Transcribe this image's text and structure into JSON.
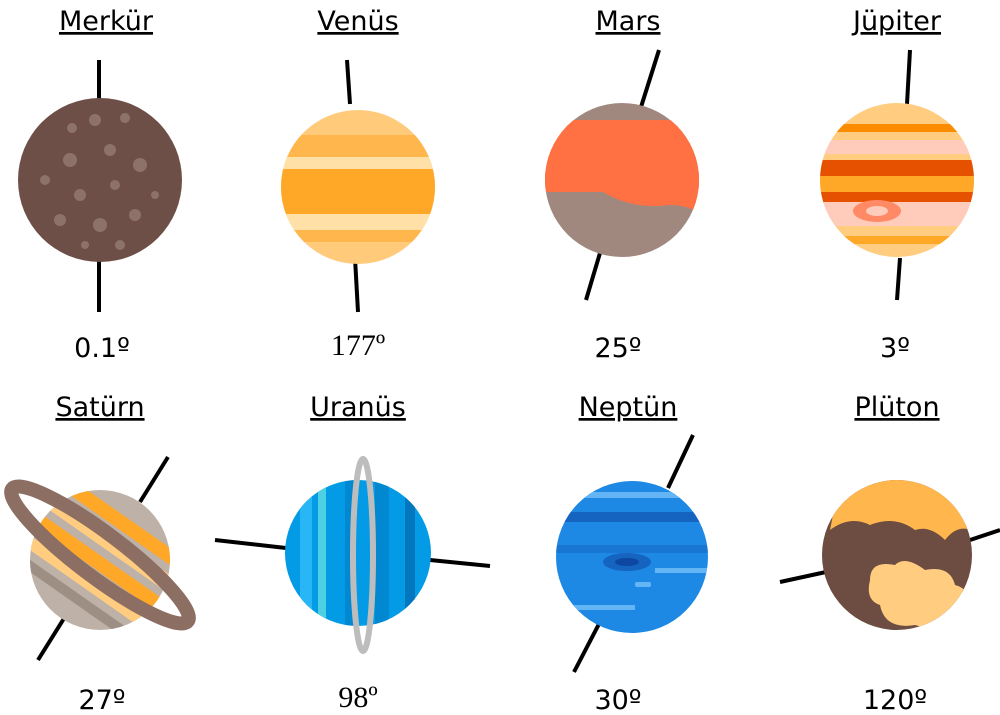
{
  "planets": [
    {
      "name": "Merkür",
      "tilt": "0.1º"
    },
    {
      "name": "Venüs",
      "tilt": "177º"
    },
    {
      "name": "Mars",
      "tilt": "25º"
    },
    {
      "name": "Jüpiter",
      "tilt": "3º"
    },
    {
      "name": "Satürn",
      "tilt": "27º"
    },
    {
      "name": "Uranüs",
      "tilt": "98º"
    },
    {
      "name": "Neptün",
      "tilt": "30º"
    },
    {
      "name": "Plüton",
      "tilt": "120º"
    }
  ]
}
